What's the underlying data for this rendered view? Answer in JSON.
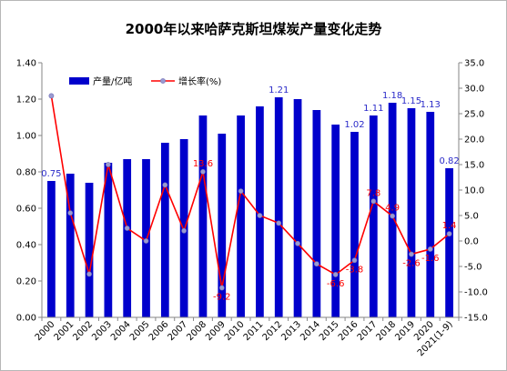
{
  "chart_data": {
    "type": "bar+line",
    "title": "2000年以来哈萨克斯坦煤炭产量变化走势",
    "categories": [
      "2000",
      "2001",
      "2002",
      "2003",
      "2004",
      "2005",
      "2006",
      "2007",
      "2008",
      "2009",
      "2010",
      "2011",
      "2012",
      "2013",
      "2014",
      "2015",
      "2016",
      "2017",
      "2018",
      "2019",
      "2020",
      "2021(1-9)"
    ],
    "series": [
      {
        "name": "产量/亿吨",
        "type": "bar",
        "axis": "left",
        "color": "#0000cc",
        "values": [
          0.75,
          0.79,
          0.74,
          0.85,
          0.87,
          0.87,
          0.96,
          0.98,
          1.11,
          1.01,
          1.11,
          1.16,
          1.21,
          1.2,
          1.14,
          1.06,
          1.02,
          1.11,
          1.18,
          1.15,
          1.13,
          0.82
        ],
        "data_labels": {
          "0": "0.75",
          "12": "1.21",
          "16": "1.02",
          "17": "1.11",
          "18": "1.18",
          "19": "1.15",
          "20": "1.13",
          "21": "0.82"
        }
      },
      {
        "name": "增长率(%)",
        "type": "line",
        "axis": "right",
        "color": "#ff0000",
        "values": [
          28.5,
          5.5,
          -6.5,
          15.0,
          2.5,
          0.0,
          11.0,
          2.0,
          13.6,
          -9.2,
          9.8,
          5.0,
          3.5,
          -0.5,
          -4.5,
          -6.6,
          -3.8,
          7.8,
          4.9,
          -2.6,
          -1.6,
          1.4
        ],
        "data_labels": {
          "8": "13.6",
          "9": "-9.2",
          "15": "-6.6",
          "16": "-3.8",
          "17": "7.8",
          "18": "4.9",
          "19": "-2.6",
          "20": "-1.6",
          "21": "1.4"
        }
      }
    ],
    "y_left": {
      "min": 0,
      "max": 1.4,
      "step": 0.2,
      "ticks": [
        "0.00",
        "0.20",
        "0.40",
        "0.60",
        "0.80",
        "1.00",
        "1.20",
        "1.40"
      ]
    },
    "y_right": {
      "min": -15,
      "max": 35,
      "step": 5,
      "ticks": [
        "-15.0",
        "-10.0",
        "-5.0",
        "0.0",
        "5.0",
        "10.0",
        "15.0",
        "20.0",
        "25.0",
        "30.0",
        "35.0"
      ]
    },
    "legend": {
      "placement": "top-left",
      "bar_label": "产量/亿吨",
      "line_label": "增长率(%)"
    },
    "grid": false
  }
}
